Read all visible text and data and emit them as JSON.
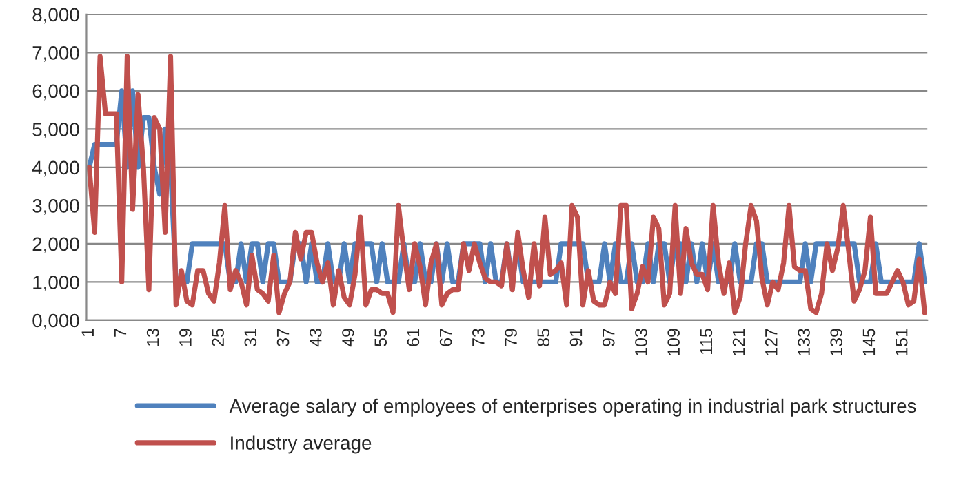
{
  "chart_data": {
    "type": "line",
    "categories": [
      "1",
      null,
      null,
      null,
      null,
      null,
      "7",
      null,
      null,
      null,
      null,
      null,
      "13",
      null,
      null,
      null,
      null,
      null,
      "19",
      null,
      null,
      null,
      null,
      null,
      "25",
      null,
      null,
      null,
      null,
      null,
      "31",
      null,
      null,
      null,
      null,
      null,
      "37",
      null,
      null,
      null,
      null,
      null,
      "43",
      null,
      null,
      null,
      null,
      null,
      "49",
      null,
      null,
      null,
      null,
      null,
      "55",
      null,
      null,
      null,
      null,
      null,
      "61",
      null,
      null,
      null,
      null,
      null,
      "67",
      null,
      null,
      null,
      null,
      null,
      "73",
      null,
      null,
      null,
      null,
      null,
      "79",
      null,
      null,
      null,
      null,
      null,
      "85",
      null,
      null,
      null,
      null,
      null,
      "91",
      null,
      null,
      null,
      null,
      null,
      "97",
      null,
      null,
      null,
      null,
      null,
      "103",
      null,
      null,
      null,
      null,
      null,
      "109",
      null,
      null,
      null,
      null,
      null,
      "115",
      null,
      null,
      null,
      null,
      null,
      "121",
      null,
      null,
      null,
      null,
      null,
      "127",
      null,
      null,
      null,
      null,
      null,
      "133",
      null,
      null,
      null,
      null,
      null,
      "139",
      null,
      null,
      null,
      null,
      null,
      "145",
      null,
      null,
      null,
      null,
      null,
      "151",
      null,
      null,
      null,
      null
    ],
    "series": [
      {
        "name": "Average salary of employees of enterprises operating in industrial park structures",
        "color": "#4f81bd",
        "values": [
          4000,
          4600,
          4600,
          4600,
          4600,
          4600,
          6000,
          4000,
          6000,
          4000,
          5300,
          5300,
          4000,
          3300,
          5000,
          4000,
          1000,
          1000,
          1000,
          2000,
          2000,
          2000,
          2000,
          2000,
          2000,
          2000,
          1000,
          1000,
          2000,
          1000,
          2000,
          2000,
          1000,
          2000,
          2000,
          1000,
          1000,
          1000,
          2000,
          2000,
          1000,
          2000,
          1000,
          1000,
          2000,
          1000,
          1000,
          2000,
          1000,
          2000,
          2000,
          2000,
          2000,
          1000,
          2000,
          1000,
          1000,
          1000,
          2000,
          1000,
          1000,
          2000,
          1000,
          1000,
          2000,
          1000,
          2000,
          1000,
          1000,
          2000,
          2000,
          2000,
          2000,
          1000,
          2000,
          1000,
          1000,
          2000,
          1000,
          2000,
          1000,
          1000,
          1000,
          1000,
          1000,
          1000,
          1000,
          2000,
          2000,
          2000,
          2000,
          2000,
          1000,
          1000,
          1000,
          2000,
          1000,
          2000,
          1000,
          1000,
          2000,
          1000,
          1000,
          2000,
          1000,
          2000,
          2000,
          1000,
          2000,
          2000,
          1000,
          2000,
          1000,
          2000,
          1000,
          2000,
          1000,
          1000,
          1000,
          2000,
          1000,
          1000,
          1000,
          2000,
          2000,
          1000,
          1000,
          1000,
          1000,
          1000,
          1000,
          1000,
          2000,
          1000,
          2000,
          2000,
          2000,
          2000,
          2000,
          2000,
          2000,
          2000,
          1000,
          1000,
          1000,
          2000,
          1000,
          1000,
          1000,
          1000,
          1000,
          1000,
          1000,
          2000,
          1000
        ]
      },
      {
        "name": "Industry average",
        "color": "#c0504d",
        "values": [
          4000,
          2300,
          6900,
          5400,
          5400,
          5400,
          1000,
          6900,
          2900,
          5900,
          4000,
          800,
          5300,
          5000,
          2300,
          6900,
          400,
          1300,
          500,
          400,
          1300,
          1300,
          700,
          500,
          1500,
          3000,
          800,
          1300,
          1000,
          400,
          1700,
          800,
          700,
          500,
          1700,
          200,
          700,
          1000,
          2300,
          1600,
          2300,
          2300,
          1500,
          1000,
          1500,
          400,
          1300,
          600,
          400,
          1200,
          2700,
          400,
          800,
          800,
          700,
          700,
          200,
          3000,
          1800,
          800,
          2000,
          1400,
          400,
          1500,
          2000,
          400,
          700,
          800,
          800,
          2000,
          1300,
          2000,
          1500,
          1100,
          1000,
          1000,
          900,
          2000,
          800,
          2300,
          1300,
          600,
          2000,
          900,
          2700,
          1200,
          1300,
          1500,
          400,
          3000,
          2700,
          400,
          1300,
          500,
          400,
          400,
          1000,
          700,
          3000,
          3000,
          300,
          700,
          1400,
          1000,
          2700,
          2400,
          400,
          700,
          3000,
          700,
          2400,
          1500,
          1200,
          1200,
          800,
          3000,
          1500,
          700,
          1500,
          200,
          600,
          2000,
          3000,
          2600,
          1100,
          400,
          1000,
          800,
          1500,
          3000,
          1400,
          1300,
          1300,
          300,
          200,
          700,
          2000,
          1300,
          1900,
          3000,
          1800,
          500,
          800,
          1300,
          2700,
          700,
          700,
          700,
          1000,
          1300,
          1000,
          400,
          500,
          1600,
          200
        ]
      }
    ],
    "ylim": [
      0,
      8000
    ],
    "yticks": [
      {
        "value": 0,
        "label": "0,000"
      },
      {
        "value": 1000,
        "label": "1,000"
      },
      {
        "value": 2000,
        "label": "2,000"
      },
      {
        "value": 3000,
        "label": "3,000"
      },
      {
        "value": 4000,
        "label": "4,000"
      },
      {
        "value": 5000,
        "label": "5,000"
      },
      {
        "value": 6000,
        "label": "6,000"
      },
      {
        "value": 7000,
        "label": "7,000"
      },
      {
        "value": 8000,
        "label": "8,000"
      }
    ],
    "grid": "y",
    "legend": "bottom",
    "marker": "none",
    "line_style": "solid"
  }
}
